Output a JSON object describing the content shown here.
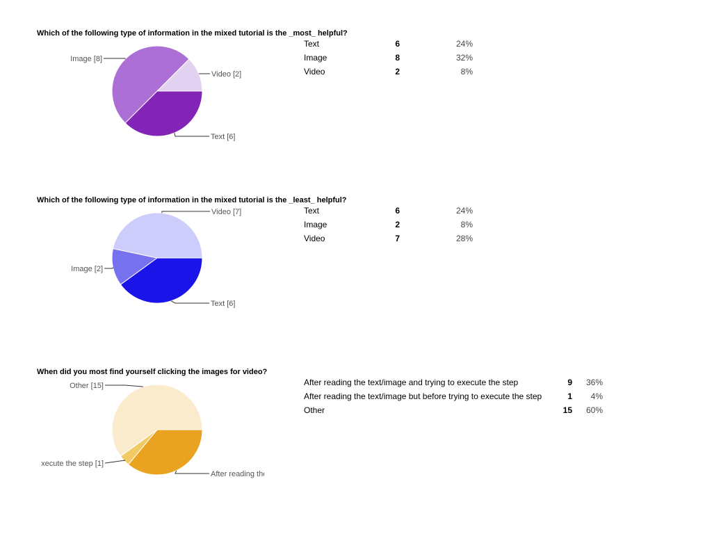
{
  "questions": [
    {
      "title": "Which of the following type of information in the mixed tutorial is the _most_ helpful?",
      "rows": [
        {
          "label": "Text",
          "count": "6",
          "percent": "24%"
        },
        {
          "label": "Image",
          "count": "8",
          "percent": "32%"
        },
        {
          "label": "Video",
          "count": "2",
          "percent": "8%"
        }
      ]
    },
    {
      "title": "Which of the following type of information in the mixed tutorial is the _least_ helpful?",
      "rows": [
        {
          "label": "Text",
          "count": "6",
          "percent": "24%"
        },
        {
          "label": "Image",
          "count": "2",
          "percent": "8%"
        },
        {
          "label": "Video",
          "count": "7",
          "percent": "28%"
        }
      ]
    },
    {
      "title": "When did you most find yourself clicking the images for video?",
      "rows": [
        {
          "label": "After reading the text/image and trying to execute the step",
          "count": "9",
          "percent": "36%"
        },
        {
          "label": "After reading the text/image but before trying to execute the step",
          "count": "1",
          "percent": "4%"
        },
        {
          "label": "Other",
          "count": "15",
          "percent": "60%"
        }
      ]
    }
  ],
  "chart_data": [
    {
      "type": "pie",
      "title": "Which of the following type of information in the mixed tutorial is the _most_ helpful?",
      "categories": [
        "Text",
        "Image",
        "Video"
      ],
      "values": [
        6,
        8,
        2
      ],
      "labels": [
        "Text [6]",
        "Image [8]",
        "Video [2]"
      ],
      "colors": [
        "#8224b6",
        "#ab6fd6",
        "#e3d1f2"
      ]
    },
    {
      "type": "pie",
      "title": "Which of the following type of information in the mixed tutorial is the _least_ helpful?",
      "categories": [
        "Text",
        "Image",
        "Video"
      ],
      "values": [
        6,
        2,
        7
      ],
      "labels": [
        "Text [6]",
        "Image [2]",
        "Video [7]"
      ],
      "colors": [
        "#1a14e8",
        "#7672ef",
        "#cdcdfb"
      ]
    },
    {
      "type": "pie",
      "title": "When did you most find yourself clicking the images for video?",
      "categories": [
        "After reading the text/image and trying to execute the step",
        "After reading the text/image but before trying to execute the step",
        "Other"
      ],
      "values": [
        9,
        1,
        15
      ],
      "labels": [
        "After reading the te",
        "xecute the step [1]",
        "Other [15]"
      ],
      "colors": [
        "#e9a320",
        "#f0cb65",
        "#faebcc"
      ]
    }
  ]
}
